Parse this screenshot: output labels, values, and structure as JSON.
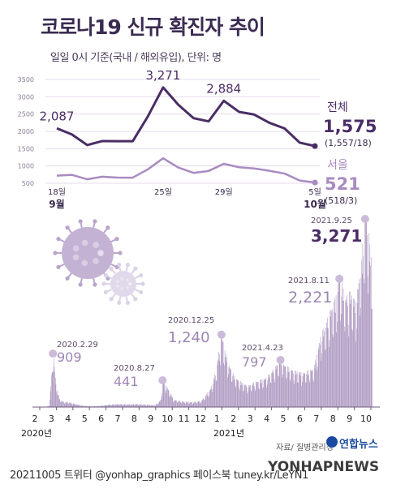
{
  "title": "코로나19 신규 확진자 추이",
  "subtitle": "일일 0시 기준(국내 / 해외유입), 단위: 명",
  "footer": "20211005 트위터 @yonhap_graphics 페이스북 tuney.kr/LeYN1",
  "source": "자료/ 질병관리청",
  "brand": "연합뉴스",
  "watermark": "YONHAPNEWS",
  "colors": {
    "total": "#4a2d66",
    "seoul": "#a88bc0",
    "daily": "#9e85b5",
    "marker": "#cbbbd8"
  },
  "icons": [
    "coronavirus-illustration-icon",
    "yonhap-logo-icon"
  ],
  "chart_data": [
    {
      "type": "line",
      "title": "",
      "y_ticks": [
        "3500",
        "3000",
        "2500",
        "2000",
        "1500",
        "1000",
        "500"
      ],
      "ylim": [
        500,
        3500
      ],
      "x": [
        18,
        19,
        20,
        21,
        22,
        23,
        24,
        25,
        26,
        27,
        28,
        29,
        30,
        1,
        2,
        3,
        4,
        5
      ],
      "x_labels": [
        "18일",
        "25일",
        "29일",
        "5일"
      ],
      "month_labels": [
        "9월",
        "10월"
      ],
      "series": [
        {
          "name": "전체",
          "values": [
            2087,
            1909,
            1604,
            1720,
            1716,
            1715,
            2434,
            3271,
            2771,
            2383,
            2289,
            2884,
            2564,
            2486,
            2248,
            2085,
            1673,
            1575
          ]
        },
        {
          "name": "서울",
          "values": [
            720,
            742,
            615,
            690,
            665,
            662,
            903,
            1222,
            955,
            800,
            856,
            1062,
            963,
            928,
            860,
            780,
            580,
            521
          ]
        }
      ],
      "point_labels": [
        {
          "index": 0,
          "text": "2,087"
        },
        {
          "index": 7,
          "text": "3,271"
        },
        {
          "index": 11,
          "text": "2,884"
        }
      ],
      "end_labels": {
        "total_name": "전체",
        "total_value": "1,575",
        "total_breakdown": "(1,557/18)",
        "seoul_name": "서울",
        "seoul_value": "521",
        "seoul_breakdown": "(518/3)"
      }
    },
    {
      "type": "bar",
      "title": "",
      "x_ticks": [
        "2",
        "3",
        "4",
        "5",
        "6",
        "7",
        "8",
        "9",
        "10",
        "11",
        "12",
        "1",
        "2",
        "3",
        "4",
        "5",
        "6",
        "7",
        "8",
        "9",
        "10"
      ],
      "year_labels": [
        "2020년",
        "2021년"
      ],
      "daily_pattern": [
        [
          0,
          0
        ],
        [
          0.1,
          2
        ],
        [
          0.25,
          30
        ],
        [
          0.45,
          909
        ],
        [
          0.6,
          400
        ],
        [
          0.8,
          130
        ],
        [
          1.0,
          90
        ],
        [
          1.3,
          80
        ],
        [
          2.0,
          25
        ],
        [
          2.5,
          12
        ],
        [
          3.0,
          20
        ],
        [
          3.5,
          40
        ],
        [
          4.0,
          50
        ],
        [
          4.5,
          45
        ],
        [
          5.0,
          50
        ],
        [
          5.5,
          40
        ],
        [
          6.0,
          30
        ],
        [
          6.3,
          120
        ],
        [
          6.4,
          441
        ],
        [
          6.7,
          300
        ],
        [
          7.0,
          120
        ],
        [
          7.5,
          90
        ],
        [
          8.0,
          80
        ],
        [
          8.5,
          100
        ],
        [
          9.0,
          300
        ],
        [
          9.3,
          600
        ],
        [
          9.6,
          1240
        ],
        [
          9.8,
          900
        ],
        [
          10.0,
          700
        ],
        [
          10.3,
          500
        ],
        [
          10.7,
          400
        ],
        [
          11.0,
          350
        ],
        [
          11.5,
          420
        ],
        [
          12.0,
          480
        ],
        [
          12.5,
          650
        ],
        [
          12.8,
          797
        ],
        [
          13.0,
          700
        ],
        [
          13.5,
          600
        ],
        [
          14.0,
          560
        ],
        [
          14.6,
          640
        ],
        [
          15.0,
          1200
        ],
        [
          15.3,
          1400
        ],
        [
          15.5,
          1600
        ],
        [
          15.8,
          1800
        ],
        [
          16.0,
          2221
        ],
        [
          16.3,
          1800
        ],
        [
          16.6,
          1900
        ],
        [
          16.9,
          1700
        ],
        [
          17.0,
          2000
        ],
        [
          17.2,
          2400
        ],
        [
          17.4,
          3271
        ],
        [
          17.6,
          2800
        ],
        [
          17.8,
          2200
        ]
      ],
      "annotations": [
        {
          "date": "2020.2.29",
          "value": "909"
        },
        {
          "date": "2020.8.27",
          "value": "441"
        },
        {
          "date": "2020.12.25",
          "value": "1,240"
        },
        {
          "date": "2021.4.23",
          "value": "797"
        },
        {
          "date": "2021.8.11",
          "value": "2,221"
        },
        {
          "date": "2021.9.25",
          "value": "3,271"
        }
      ]
    }
  ]
}
